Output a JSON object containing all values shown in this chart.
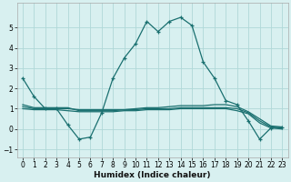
{
  "xlabel": "Humidex (Indice chaleur)",
  "bg_color": "#d8f0f0",
  "grid_color": "#b0d8d8",
  "line_color": "#1a7070",
  "xlim": [
    -0.5,
    23.5
  ],
  "ylim": [
    -1.4,
    6.2
  ],
  "xticks": [
    0,
    1,
    2,
    3,
    4,
    5,
    6,
    7,
    8,
    9,
    10,
    11,
    12,
    13,
    14,
    15,
    16,
    17,
    18,
    19,
    20,
    21,
    22,
    23
  ],
  "yticks": [
    -1,
    0,
    1,
    2,
    3,
    4,
    5
  ],
  "main_x": [
    0,
    1,
    2,
    3,
    4,
    5,
    6,
    7,
    8,
    9,
    10,
    11,
    12,
    13,
    14,
    15,
    16,
    17,
    18,
    19,
    20,
    21,
    22,
    23
  ],
  "main_y": [
    2.5,
    1.6,
    1.0,
    1.0,
    0.2,
    -0.5,
    -0.4,
    0.8,
    2.5,
    3.5,
    4.2,
    5.3,
    4.8,
    5.3,
    5.5,
    5.1,
    3.3,
    2.5,
    1.4,
    1.2,
    0.4,
    -0.5,
    0.05,
    0.1
  ],
  "flat1_x": [
    0,
    1,
    2,
    3,
    4,
    5,
    6,
    7,
    8,
    9,
    10,
    11,
    12,
    13,
    14,
    15,
    16,
    17,
    18,
    19,
    20,
    21,
    22,
    23
  ],
  "flat1_y": [
    1.1,
    1.0,
    1.0,
    1.0,
    1.0,
    0.95,
    0.95,
    0.95,
    0.95,
    0.95,
    0.95,
    1.0,
    1.0,
    1.0,
    1.05,
    1.05,
    1.05,
    1.05,
    1.05,
    1.0,
    0.8,
    0.4,
    0.1,
    0.05
  ],
  "flat2_x": [
    0,
    1,
    2,
    3,
    4,
    5,
    6,
    7,
    8,
    9,
    10,
    11,
    12,
    13,
    14,
    15,
    16,
    17,
    18,
    19,
    20,
    21,
    22,
    23
  ],
  "flat2_y": [
    1.2,
    1.05,
    1.05,
    1.05,
    1.05,
    0.9,
    0.9,
    0.9,
    0.9,
    0.95,
    1.0,
    1.05,
    1.05,
    1.1,
    1.15,
    1.15,
    1.15,
    1.2,
    1.2,
    1.1,
    0.85,
    0.5,
    0.15,
    0.1
  ],
  "flat3_x": [
    0,
    1,
    2,
    3,
    4,
    5,
    6,
    7,
    8,
    9,
    10,
    11,
    12,
    13,
    14,
    15,
    16,
    17,
    18,
    19,
    20,
    21,
    22,
    23
  ],
  "flat3_y": [
    1.0,
    0.95,
    0.95,
    0.95,
    0.9,
    0.85,
    0.85,
    0.85,
    0.85,
    0.9,
    0.9,
    0.95,
    0.95,
    0.95,
    1.0,
    1.0,
    1.0,
    1.0,
    1.0,
    0.9,
    0.75,
    0.3,
    0.05,
    0.0
  ]
}
